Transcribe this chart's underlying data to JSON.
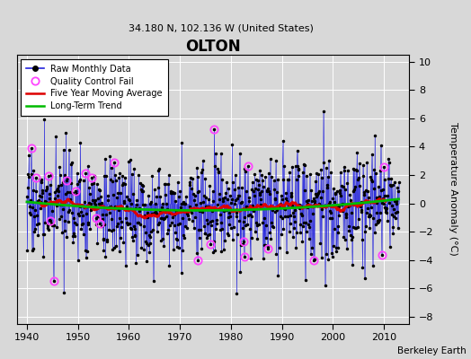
{
  "title": "OLTON",
  "subtitle": "34.180 N, 102.136 W (United States)",
  "credit": "Berkeley Earth",
  "ylabel": "Temperature Anomaly (°C)",
  "xlim": [
    1938,
    2015
  ],
  "ylim": [
    -8.5,
    10.5
  ],
  "yticks": [
    -8,
    -6,
    -4,
    -2,
    0,
    2,
    4,
    6,
    8,
    10
  ],
  "xticks": [
    1940,
    1950,
    1960,
    1970,
    1980,
    1990,
    2000,
    2010
  ],
  "bg_color": "#d8d8d8",
  "plot_bg_color": "#d8d8d8",
  "line_color": "#2222dd",
  "moving_avg_color": "#dd0000",
  "trend_color": "#00bb00",
  "qc_color": "#ff44ff",
  "seed": 17,
  "start_year": 1940,
  "end_year": 2013,
  "noise_std": 1.8
}
